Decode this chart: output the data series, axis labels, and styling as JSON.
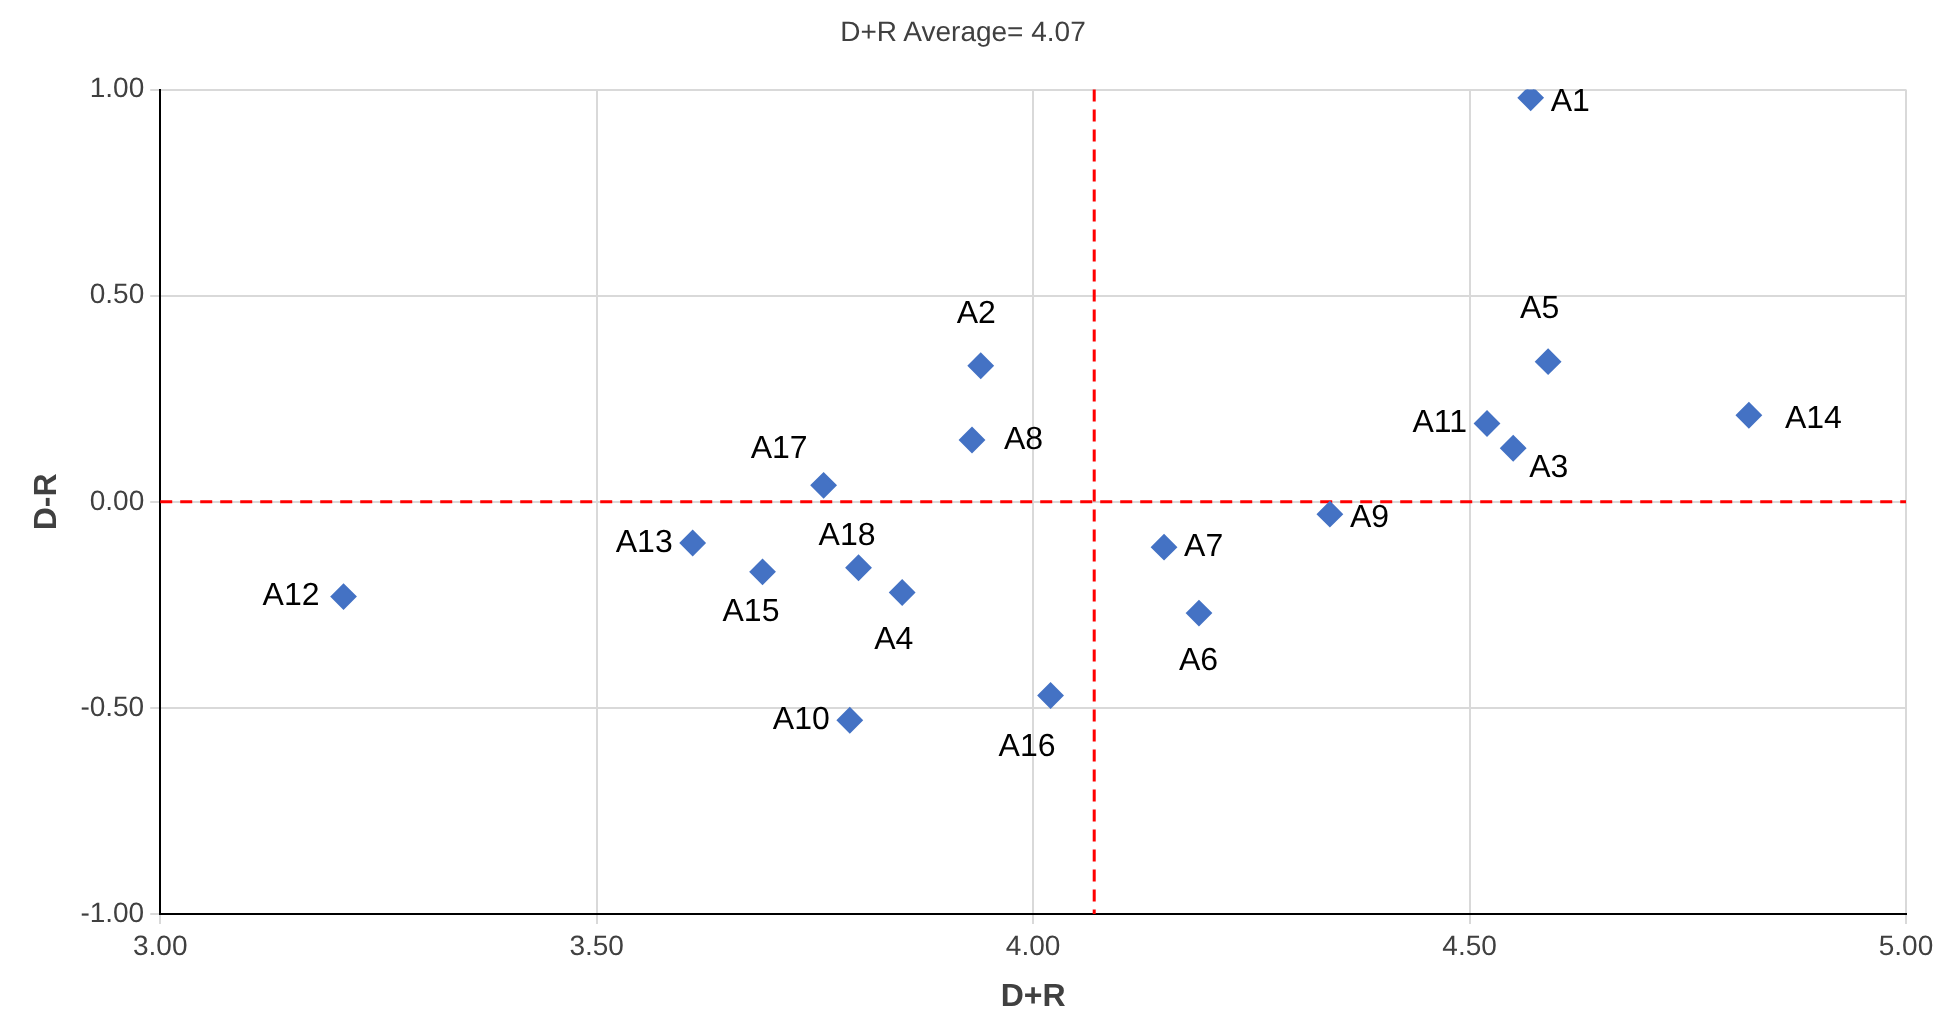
{
  "chart_data": {
    "type": "scatter",
    "title": "D+R Average= 4.07",
    "xlabel": "D+R",
    "ylabel": "D-R",
    "marker": "diamond",
    "grid": true,
    "legend": false,
    "xlim": [
      3,
      5
    ],
    "ylim": [
      -1,
      1
    ],
    "xticks": [
      {
        "value": 3,
        "label": "3.00"
      },
      {
        "value": 3.5,
        "label": "3.50"
      },
      {
        "value": 4,
        "label": "4.00"
      },
      {
        "value": 4.5,
        "label": "4.50"
      },
      {
        "value": 5,
        "label": "5.00"
      }
    ],
    "yticks": [
      {
        "value": -1,
        "label": "-1.00"
      },
      {
        "value": -0.5,
        "label": "-0.50"
      },
      {
        "value": 0,
        "label": "0.00"
      },
      {
        "value": 0.5,
        "label": "0.50"
      },
      {
        "value": 1,
        "label": "1.00"
      }
    ],
    "ref_lines": [
      {
        "axis": "x",
        "value": 4.07,
        "color": "#ff0000",
        "line_style": "dashed"
      },
      {
        "axis": "y",
        "value": 0,
        "color": "#ff0000",
        "line_style": "dashed"
      }
    ],
    "series": [
      {
        "name": "A1",
        "color": "#4472c4",
        "x": [
          4.57
        ],
        "values": [
          0.98
        ]
      },
      {
        "name": "A2",
        "color": "#4472c4",
        "x": [
          3.94
        ],
        "values": [
          0.33
        ]
      },
      {
        "name": "A3",
        "color": "#4472c4",
        "x": [
          4.55
        ],
        "values": [
          0.13
        ]
      },
      {
        "name": "A4",
        "color": "#4472c4",
        "x": [
          3.85
        ],
        "values": [
          -0.22
        ]
      },
      {
        "name": "A5",
        "color": "#4472c4",
        "x": [
          4.59
        ],
        "values": [
          0.34
        ]
      },
      {
        "name": "A6",
        "color": "#4472c4",
        "x": [
          4.19
        ],
        "values": [
          -0.27
        ]
      },
      {
        "name": "A7",
        "color": "#4472c4",
        "x": [
          4.15
        ],
        "values": [
          -0.11
        ]
      },
      {
        "name": "A8",
        "color": "#4472c4",
        "x": [
          3.93
        ],
        "values": [
          0.15
        ]
      },
      {
        "name": "A9",
        "color": "#4472c4",
        "x": [
          4.34
        ],
        "values": [
          -0.03
        ]
      },
      {
        "name": "A10",
        "color": "#4472c4",
        "x": [
          3.79
        ],
        "values": [
          -0.53
        ]
      },
      {
        "name": "A11",
        "color": "#4472c4",
        "x": [
          4.52
        ],
        "values": [
          0.19
        ]
      },
      {
        "name": "A12",
        "color": "#4472c4",
        "x": [
          3.21
        ],
        "values": [
          -0.23
        ]
      },
      {
        "name": "A13",
        "color": "#4472c4",
        "x": [
          3.61
        ],
        "values": [
          -0.1
        ]
      },
      {
        "name": "A14",
        "color": "#4472c4",
        "x": [
          4.82
        ],
        "values": [
          0.21
        ]
      },
      {
        "name": "A15",
        "color": "#4472c4",
        "x": [
          3.69
        ],
        "values": [
          -0.17
        ]
      },
      {
        "name": "A16",
        "color": "#4472c4",
        "x": [
          4.02
        ],
        "values": [
          -0.47
        ]
      },
      {
        "name": "A17",
        "color": "#4472c4",
        "x": [
          3.76
        ],
        "values": [
          0.04
        ]
      },
      {
        "name": "A18",
        "color": "#4472c4",
        "x": [
          3.8
        ],
        "values": [
          -0.16
        ]
      }
    ]
  }
}
